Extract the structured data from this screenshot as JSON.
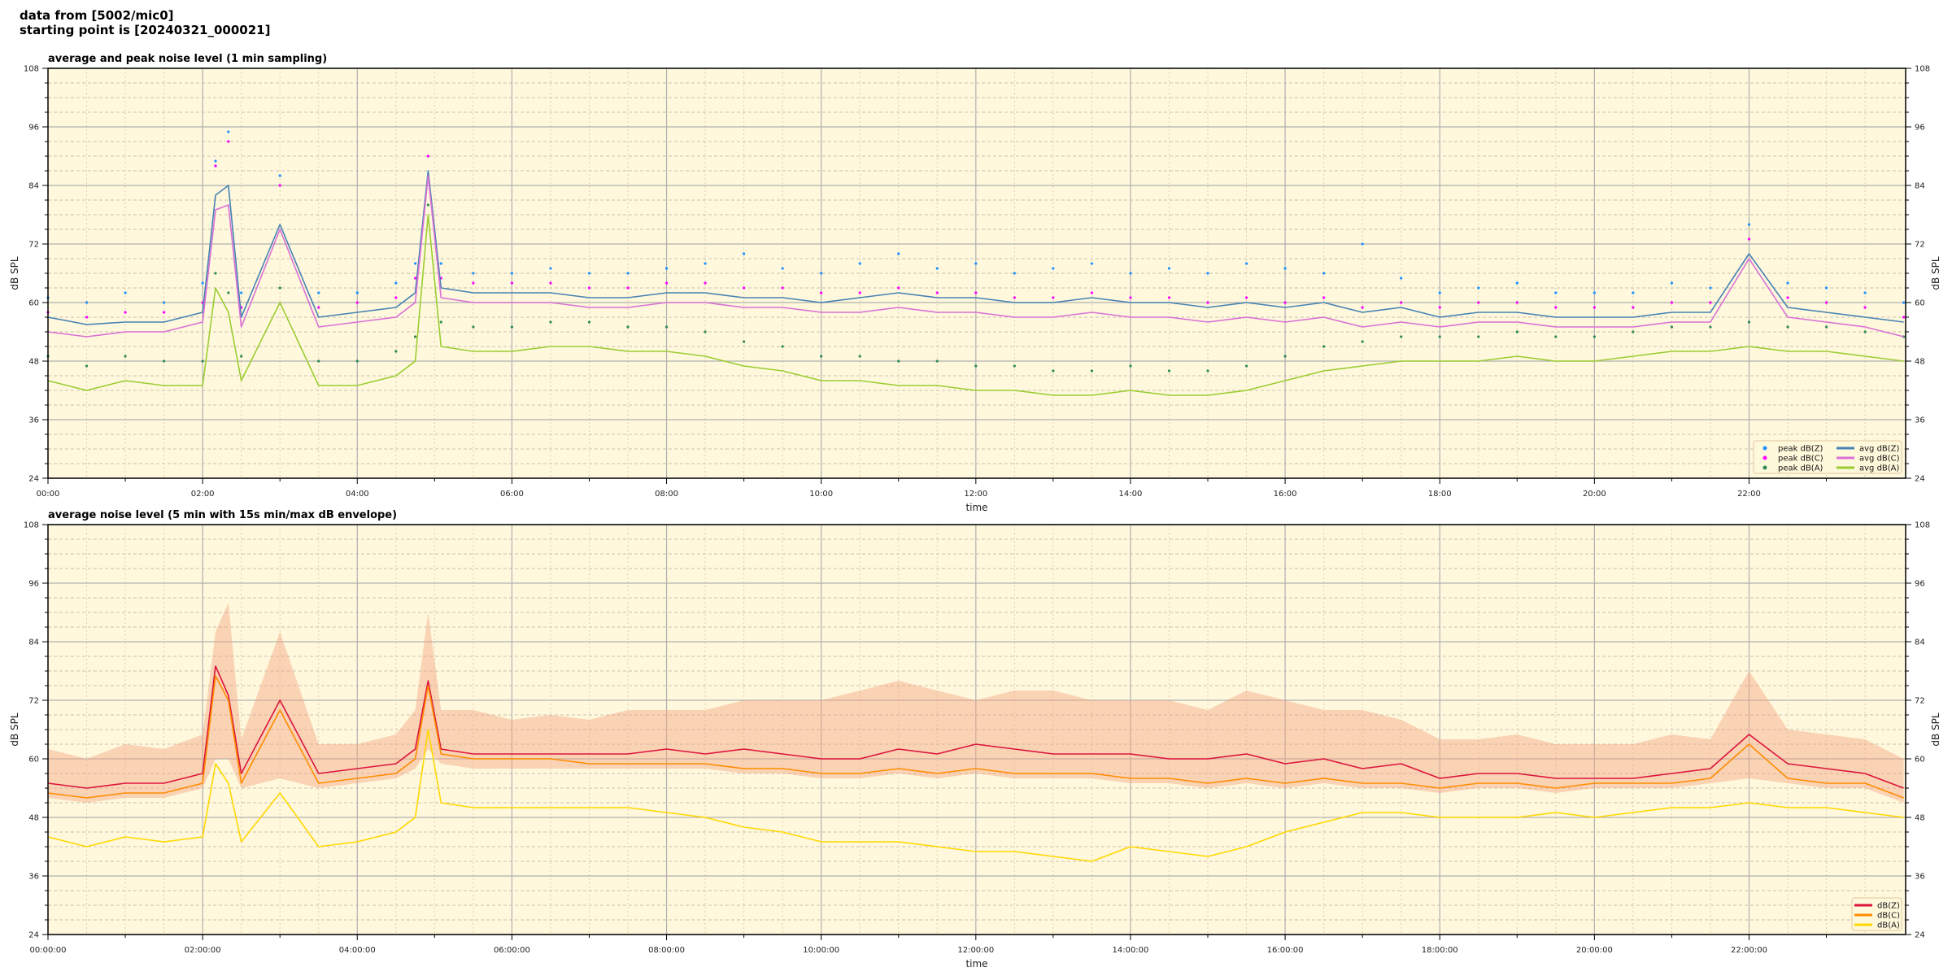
{
  "figure": {
    "title_line1": "data from [5002/mic0]",
    "title_line2": "starting point is [20240321_000021]"
  },
  "chart_data": [
    {
      "type": "line",
      "title": "average and peak noise level (1 min sampling)",
      "xlabel": "time",
      "ylabel": "dB SPL",
      "ylim": [
        24,
        108
      ],
      "xlim": [
        "00:00",
        "24:00"
      ],
      "yticks": [
        24,
        36,
        48,
        60,
        72,
        84,
        96,
        108
      ],
      "xtick_labels": [
        "00:00",
        "02:00",
        "04:00",
        "06:00",
        "08:00",
        "10:00",
        "12:00",
        "14:00",
        "16:00",
        "18:00",
        "20:00",
        "22:00"
      ],
      "grid": true,
      "background": "#fff8dc",
      "legend_placement": "lower-right",
      "x": [
        "00:00",
        "00:30",
        "01:00",
        "01:30",
        "02:00",
        "02:10",
        "02:20",
        "02:30",
        "03:00",
        "03:30",
        "04:00",
        "04:30",
        "04:45",
        "04:55",
        "05:05",
        "05:30",
        "06:00",
        "06:30",
        "07:00",
        "07:30",
        "08:00",
        "08:30",
        "09:00",
        "09:30",
        "10:00",
        "10:30",
        "11:00",
        "11:30",
        "12:00",
        "12:30",
        "13:00",
        "13:30",
        "14:00",
        "14:30",
        "15:00",
        "15:30",
        "16:00",
        "16:30",
        "17:00",
        "17:30",
        "18:00",
        "18:30",
        "19:00",
        "19:30",
        "20:00",
        "20:30",
        "21:00",
        "21:30",
        "22:00",
        "22:30",
        "23:00",
        "23:30",
        "24:00"
      ],
      "series": [
        {
          "name": "peak dB(Z)",
          "kind": "scatter",
          "color": "#1e90ff",
          "values": [
            61,
            60,
            62,
            60,
            64,
            89,
            95,
            62,
            86,
            62,
            62,
            64,
            68,
            90,
            68,
            66,
            66,
            67,
            66,
            66,
            67,
            68,
            70,
            67,
            66,
            68,
            70,
            67,
            68,
            66,
            67,
            68,
            66,
            67,
            66,
            68,
            67,
            66,
            72,
            65,
            62,
            63,
            64,
            62,
            62,
            62,
            64,
            63,
            76,
            64,
            63,
            62,
            60
          ]
        },
        {
          "name": "peak dB(C)",
          "kind": "scatter",
          "color": "#ff00ff",
          "values": [
            58,
            57,
            58,
            58,
            60,
            88,
            93,
            59,
            84,
            59,
            60,
            61,
            65,
            90,
            65,
            64,
            64,
            64,
            63,
            63,
            64,
            64,
            63,
            63,
            62,
            62,
            63,
            62,
            62,
            61,
            61,
            62,
            61,
            61,
            60,
            61,
            60,
            61,
            59,
            60,
            59,
            60,
            60,
            59,
            59,
            59,
            60,
            60,
            73,
            61,
            60,
            59,
            57
          ]
        },
        {
          "name": "peak dB(A)",
          "kind": "scatter",
          "color": "#2e8b57",
          "values": [
            49,
            47,
            49,
            48,
            48,
            66,
            62,
            49,
            63,
            48,
            48,
            50,
            53,
            80,
            56,
            55,
            55,
            56,
            56,
            55,
            55,
            54,
            52,
            51,
            49,
            49,
            48,
            48,
            47,
            47,
            46,
            46,
            47,
            46,
            46,
            47,
            49,
            51,
            52,
            53,
            53,
            53,
            54,
            53,
            53,
            54,
            55,
            55,
            56,
            55,
            55,
            54,
            53
          ]
        },
        {
          "name": "avg dB(Z)",
          "kind": "line",
          "color": "#4682b4",
          "values": [
            57,
            55.5,
            56,
            56,
            58,
            82,
            84,
            57,
            76,
            57,
            58,
            59,
            62,
            87,
            63,
            62,
            62,
            62,
            61,
            61,
            62,
            62,
            61,
            61,
            60,
            61,
            62,
            61,
            61,
            60,
            60,
            61,
            60,
            60,
            59,
            60,
            59,
            60,
            58,
            59,
            57,
            58,
            58,
            57,
            57,
            57,
            58,
            58,
            70,
            59,
            58,
            57,
            56
          ]
        },
        {
          "name": "avg dB(C)",
          "kind": "line",
          "color": "#da70d6",
          "values": [
            54,
            53,
            54,
            54,
            56,
            79,
            80,
            55,
            75,
            55,
            56,
            57,
            60,
            86,
            61,
            60,
            60,
            60,
            59,
            59,
            60,
            60,
            59,
            59,
            58,
            58,
            59,
            58,
            58,
            57,
            57,
            58,
            57,
            57,
            56,
            57,
            56,
            57,
            55,
            56,
            55,
            56,
            56,
            55,
            55,
            55,
            56,
            56,
            69,
            57,
            56,
            55,
            53
          ]
        },
        {
          "name": "avg dB(A)",
          "kind": "line",
          "color": "#9acd32",
          "values": [
            44,
            42,
            44,
            43,
            43,
            63,
            58,
            44,
            60,
            43,
            43,
            45,
            48,
            78,
            51,
            50,
            50,
            51,
            51,
            50,
            50,
            49,
            47,
            46,
            44,
            44,
            43,
            43,
            42,
            42,
            41,
            41,
            42,
            41,
            41,
            42,
            44,
            46,
            47,
            48,
            48,
            48,
            49,
            48,
            48,
            49,
            50,
            50,
            51,
            50,
            50,
            49,
            48
          ]
        }
      ]
    },
    {
      "type": "line",
      "title": "average noise level (5 min with 15s min/max dB envelope)",
      "xlabel": "time",
      "ylabel": "dB SPL",
      "ylim": [
        24,
        108
      ],
      "xlim": [
        "00:00:00",
        "24:00:00"
      ],
      "yticks": [
        24,
        36,
        48,
        60,
        72,
        84,
        96,
        108
      ],
      "xtick_labels": [
        "00:00:00",
        "02:00:00",
        "04:00:00",
        "06:00:00",
        "08:00:00",
        "10:00:00",
        "12:00:00",
        "14:00:00",
        "16:00:00",
        "18:00:00",
        "20:00:00",
        "22:00:00"
      ],
      "grid": true,
      "background": "#fff8dc",
      "legend_placement": "lower-right",
      "x": [
        "00:00",
        "00:30",
        "01:00",
        "01:30",
        "02:00",
        "02:10",
        "02:20",
        "02:30",
        "03:00",
        "03:30",
        "04:00",
        "04:30",
        "04:45",
        "04:55",
        "05:05",
        "05:30",
        "06:00",
        "06:30",
        "07:00",
        "07:30",
        "08:00",
        "08:30",
        "09:00",
        "09:30",
        "10:00",
        "10:30",
        "11:00",
        "11:30",
        "12:00",
        "12:30",
        "13:00",
        "13:30",
        "14:00",
        "14:30",
        "15:00",
        "15:30",
        "16:00",
        "16:30",
        "17:00",
        "17:30",
        "18:00",
        "18:30",
        "19:00",
        "19:30",
        "20:00",
        "20:30",
        "21:00",
        "21:30",
        "22:00",
        "22:30",
        "23:00",
        "23:30",
        "24:00"
      ],
      "envelope": {
        "color": "#f4a582",
        "max": [
          62,
          60,
          63,
          62,
          65,
          86,
          92,
          64,
          86,
          63,
          63,
          65,
          70,
          90,
          70,
          70,
          68,
          69,
          68,
          70,
          70,
          70,
          72,
          72,
          72,
          74,
          76,
          74,
          72,
          74,
          74,
          72,
          72,
          72,
          70,
          74,
          72,
          70,
          70,
          68,
          64,
          64,
          65,
          63,
          63,
          63,
          65,
          64,
          78,
          66,
          65,
          64,
          60
        ],
        "min": [
          52,
          51,
          52,
          52,
          54,
          60,
          60,
          54,
          56,
          54,
          55,
          56,
          58,
          62,
          59,
          58,
          58,
          58,
          58,
          58,
          58,
          58,
          57,
          57,
          56,
          56,
          57,
          56,
          57,
          56,
          56,
          56,
          55,
          55,
          54,
          55,
          54,
          55,
          54,
          54,
          53,
          54,
          54,
          53,
          54,
          54,
          54,
          55,
          56,
          55,
          54,
          54,
          51
        ]
      },
      "series": [
        {
          "name": "dB(Z)",
          "kind": "line",
          "color": "#dc143c",
          "values": [
            55,
            54,
            55,
            55,
            57,
            79,
            73,
            57,
            72,
            57,
            58,
            59,
            62,
            76,
            62,
            61,
            61,
            61,
            61,
            61,
            62,
            61,
            62,
            61,
            60,
            60,
            62,
            61,
            63,
            62,
            61,
            61,
            61,
            60,
            60,
            61,
            59,
            60,
            58,
            59,
            56,
            57,
            57,
            56,
            56,
            56,
            57,
            58,
            65,
            59,
            58,
            57,
            54
          ]
        },
        {
          "name": "dB(C)",
          "kind": "line",
          "color": "#ff8c00",
          "values": [
            53,
            52,
            53,
            53,
            55,
            77,
            72,
            55,
            70,
            55,
            56,
            57,
            60,
            75,
            61,
            60,
            60,
            60,
            59,
            59,
            59,
            59,
            58,
            58,
            57,
            57,
            58,
            57,
            58,
            57,
            57,
            57,
            56,
            56,
            55,
            56,
            55,
            56,
            55,
            55,
            54,
            55,
            55,
            54,
            55,
            55,
            55,
            56,
            63,
            56,
            55,
            55,
            52
          ]
        },
        {
          "name": "dB(A)",
          "kind": "line",
          "color": "#ffd700",
          "values": [
            44,
            42,
            44,
            43,
            44,
            59,
            55,
            43,
            53,
            42,
            43,
            45,
            48,
            66,
            51,
            50,
            50,
            50,
            50,
            50,
            49,
            48,
            46,
            45,
            43,
            43,
            43,
            42,
            41,
            41,
            40,
            39,
            42,
            41,
            40,
            42,
            45,
            47,
            49,
            49,
            48,
            48,
            48,
            49,
            48,
            49,
            50,
            50,
            51,
            50,
            50,
            49,
            48
          ]
        }
      ]
    }
  ]
}
